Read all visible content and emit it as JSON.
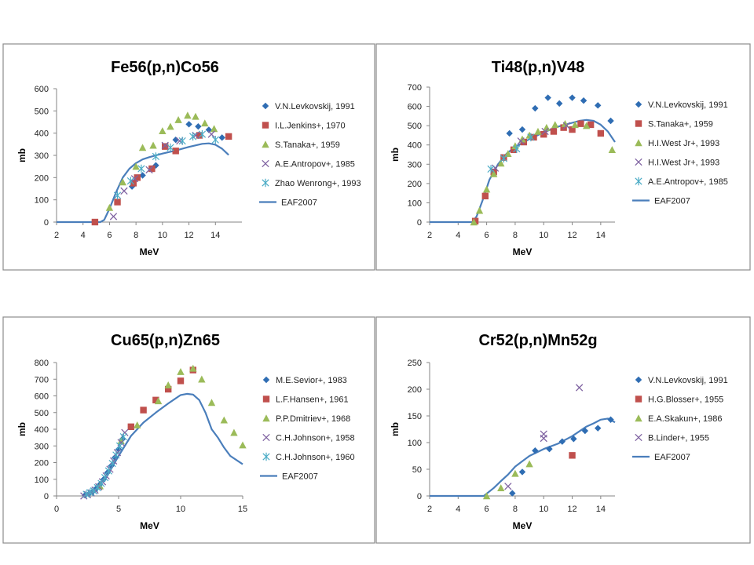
{
  "colors": {
    "diamond": "#2f6db3",
    "square": "#c0504d",
    "triangle": "#9bbb59",
    "xmark": "#8064a2",
    "star": "#4bacc6",
    "curve": "#4a7ebb",
    "frame": "#8c8c8c"
  },
  "chart_data": [
    {
      "type": "scatter",
      "title": "Fe56(p,n)Co56",
      "xlabel": "MeV",
      "ylabel": "mb",
      "xlim": [
        2,
        16
      ],
      "ylim": [
        0,
        600
      ],
      "xticks": [
        2,
        4,
        6,
        8,
        10,
        12,
        14
      ],
      "yticks": [
        0,
        100,
        200,
        300,
        400,
        500,
        600
      ],
      "legend": "right",
      "series": [
        {
          "name": "V.N.Levkovskij, 1991",
          "marker": "diamond",
          "x": [
            7.7,
            8.5,
            9.5,
            11.0,
            12.0,
            12.7,
            13.5,
            14.5
          ],
          "y": [
            160,
            210,
            255,
            370,
            440,
            430,
            415,
            380
          ]
        },
        {
          "name": "I.L.Jenkins+, 1970",
          "marker": "square",
          "x": [
            4.9,
            6.6,
            7.8,
            8.1,
            9.2,
            10.2,
            11.0,
            12.8,
            15.0
          ],
          "y": [
            0,
            90,
            175,
            200,
            240,
            340,
            320,
            390,
            385
          ]
        },
        {
          "name": "S.Tanaka+, 1959",
          "marker": "triangle",
          "x": [
            6.0,
            7.0,
            8.0,
            8.5,
            9.3,
            10.0,
            10.6,
            11.2,
            11.9,
            12.5,
            13.2,
            13.9
          ],
          "y": [
            65,
            180,
            250,
            335,
            345,
            410,
            430,
            460,
            480,
            475,
            445,
            420
          ]
        },
        {
          "name": "A.E.Antropov+, 1985",
          "marker": "xmark",
          "x": [
            6.3,
            7.1,
            7.9,
            9.0,
            10.2,
            11.3,
            12.5,
            13.7
          ],
          "y": [
            25,
            140,
            195,
            235,
            345,
            365,
            390,
            395
          ]
        },
        {
          "name": "Zhao Wenrong+, 1993",
          "marker": "star",
          "x": [
            6.6,
            7.6,
            8.4,
            9.5,
            10.6,
            11.5,
            12.3,
            13.0,
            14.0
          ],
          "y": [
            120,
            185,
            240,
            295,
            335,
            365,
            385,
            395,
            370
          ]
        },
        {
          "name": "EAF2007",
          "marker": "line",
          "x": [
            2,
            5.3,
            5.6,
            6.0,
            6.5,
            7.0,
            7.5,
            8.0,
            8.5,
            9.0,
            10.0,
            11.0,
            12.0,
            13.0,
            13.5,
            14.0,
            14.5,
            15.0
          ],
          "y": [
            0,
            0,
            10,
            60,
            135,
            200,
            240,
            265,
            282,
            292,
            308,
            322,
            338,
            352,
            354,
            348,
            330,
            302
          ]
        }
      ]
    },
    {
      "type": "scatter",
      "title": "Ti48(p,n)V48",
      "xlabel": "MeV",
      "ylabel": "mb",
      "xlim": [
        2,
        15
      ],
      "ylim": [
        0,
        700
      ],
      "xticks": [
        2,
        4,
        6,
        8,
        10,
        12,
        14
      ],
      "yticks": [
        0,
        100,
        200,
        300,
        400,
        500,
        600,
        700
      ],
      "legend": "right",
      "series": [
        {
          "name": "V.N.Levkovskij, 1991",
          "marker": "diamond",
          "x": [
            7.6,
            8.5,
            9.4,
            10.3,
            11.1,
            12.0,
            12.8,
            13.8,
            14.7
          ],
          "y": [
            460,
            480,
            590,
            645,
            615,
            645,
            630,
            605,
            525
          ]
        },
        {
          "name": "S.Tanaka+, 1959",
          "marker": "square",
          "x": [
            5.2,
            5.9,
            6.5,
            7.2,
            7.9,
            8.6,
            9.3,
            10.0,
            10.7,
            11.4,
            12.0,
            12.6,
            13.3,
            14.0
          ],
          "y": [
            5,
            135,
            260,
            335,
            375,
            415,
            440,
            455,
            470,
            490,
            480,
            510,
            505,
            460
          ]
        },
        {
          "name": "H.I.West Jr+, 1993",
          "marker": "triangle",
          "x": [
            5.1,
            5.5,
            6.0,
            6.5,
            7.0,
            7.5,
            8.0,
            8.5,
            9.0,
            9.6,
            10.2,
            10.8,
            11.5,
            12.2,
            13.0,
            14.8
          ],
          "y": [
            0,
            60,
            170,
            250,
            305,
            355,
            395,
            430,
            450,
            470,
            490,
            505,
            510,
            505,
            500,
            375
          ]
        },
        {
          "name": "H.I.West Jr+, 1993",
          "marker": "xmark",
          "x": [
            6.6,
            8.4,
            10.1,
            11.6
          ],
          "y": [
            280,
            420,
            470,
            500
          ]
        },
        {
          "name": "A.E.Antropov+, 1985",
          "marker": "star",
          "x": [
            6.3,
            7.2,
            8.1,
            9.1
          ],
          "y": [
            275,
            330,
            380,
            440
          ]
        },
        {
          "name": "EAF2007",
          "marker": "line",
          "x": [
            2,
            5.0,
            5.3,
            5.7,
            6.2,
            6.8,
            7.4,
            8.0,
            9.0,
            10.0,
            11.0,
            12.0,
            12.5,
            13.0,
            13.5,
            14.0,
            14.5,
            15.0
          ],
          "y": [
            0,
            0,
            30,
            110,
            220,
            300,
            355,
            390,
            430,
            465,
            495,
            515,
            525,
            530,
            525,
            505,
            470,
            415
          ]
        }
      ]
    },
    {
      "type": "scatter",
      "title": "Cu65(p,n)Zn65",
      "xlabel": "MeV",
      "ylabel": "mb",
      "xlim": [
        0,
        15
      ],
      "ylim": [
        0,
        800
      ],
      "xticks": [
        0,
        5,
        10,
        15
      ],
      "yticks": [
        0,
        100,
        200,
        300,
        400,
        500,
        600,
        700,
        800
      ],
      "legend": "right",
      "series": [
        {
          "name": "M.E.Sevior+, 1983",
          "marker": "diamond",
          "x": [
            2.3,
            2.6,
            2.9,
            3.2,
            3.5,
            3.8,
            4.1,
            4.4,
            4.7,
            5.0,
            5.3
          ],
          "y": [
            5,
            12,
            25,
            45,
            70,
            100,
            140,
            180,
            230,
            280,
            340
          ]
        },
        {
          "name": "L.F.Hansen+, 1961",
          "marker": "square",
          "x": [
            6.0,
            7.0,
            8.0,
            9.0,
            10.0,
            11.0
          ],
          "y": [
            415,
            515,
            575,
            640,
            690,
            755
          ]
        },
        {
          "name": "P.P.Dmitriev+, 1968",
          "marker": "triangle",
          "x": [
            3.5,
            5.2,
            6.5,
            8.2,
            9.0,
            10.0,
            11.0,
            11.7,
            12.5,
            13.5,
            14.3,
            15.0
          ],
          "y": [
            60,
            330,
            425,
            570,
            665,
            745,
            765,
            700,
            560,
            455,
            380,
            305
          ]
        },
        {
          "name": "C.H.Johnson+, 1958",
          "marker": "xmark",
          "x": [
            2.2,
            2.5,
            2.8,
            3.1,
            3.4,
            3.7,
            4.0,
            4.3,
            4.6,
            4.9,
            5.2,
            5.5
          ],
          "y": [
            0,
            8,
            18,
            35,
            55,
            85,
            120,
            160,
            210,
            260,
            320,
            380
          ]
        },
        {
          "name": "C.H.Johnson+, 1960",
          "marker": "star",
          "x": [
            2.4,
            2.7,
            3.0,
            3.3,
            3.6,
            3.9,
            4.2,
            4.5,
            4.8,
            5.1,
            5.4
          ],
          "y": [
            10,
            20,
            30,
            50,
            75,
            110,
            150,
            195,
            245,
            300,
            355
          ]
        },
        {
          "name": "EAF2007",
          "marker": "line",
          "x": [
            2.2,
            3.0,
            4.0,
            5.0,
            6.0,
            7.0,
            8.0,
            9.0,
            10.0,
            10.5,
            11.0,
            11.5,
            12.0,
            12.5,
            13.0,
            13.5,
            14.0,
            15.0
          ],
          "y": [
            0,
            30,
            110,
            240,
            360,
            440,
            500,
            555,
            605,
            612,
            608,
            575,
            500,
            400,
            350,
            290,
            240,
            190
          ]
        }
      ]
    },
    {
      "type": "scatter",
      "title": "Cr52(p,n)Mn52g",
      "xlabel": "MeV",
      "ylabel": "mb",
      "xlim": [
        2,
        15
      ],
      "ylim": [
        0,
        250
      ],
      "xticks": [
        2,
        4,
        6,
        8,
        10,
        12,
        14
      ],
      "yticks": [
        0,
        50,
        100,
        150,
        200,
        250
      ],
      "legend": "right",
      "series": [
        {
          "name": "V.N.Levkovskij, 1991",
          "marker": "diamond",
          "x": [
            7.8,
            8.5,
            9.4,
            10.4,
            11.3,
            12.1,
            12.9,
            13.8,
            14.7
          ],
          "y": [
            5,
            45,
            85,
            88,
            102,
            107,
            122,
            127,
            143
          ]
        },
        {
          "name": "H.G.Blosser+, 1955",
          "marker": "square",
          "x": [
            12.0
          ],
          "y": [
            76
          ]
        },
        {
          "name": "E.A.Skakun+, 1986",
          "marker": "triangle",
          "x": [
            6.0,
            7.0,
            8.0,
            9.0
          ],
          "y": [
            0,
            15,
            42,
            60
          ]
        },
        {
          "name": "B.Linder+, 1955",
          "marker": "xmark",
          "x": [
            7.5,
            10.0,
            10.0,
            12.5
          ],
          "y": [
            18,
            108,
            116,
            203
          ]
        },
        {
          "name": "EAF2007",
          "marker": "line",
          "x": [
            2,
            5.8,
            6.5,
            7.0,
            7.5,
            8.0,
            8.5,
            9.0,
            10.0,
            11.0,
            12.0,
            13.0,
            13.5,
            14.0,
            14.5,
            15.0
          ],
          "y": [
            0,
            0,
            15,
            28,
            40,
            55,
            65,
            75,
            88,
            98,
            112,
            130,
            136,
            143,
            145,
            138
          ]
        }
      ]
    }
  ]
}
